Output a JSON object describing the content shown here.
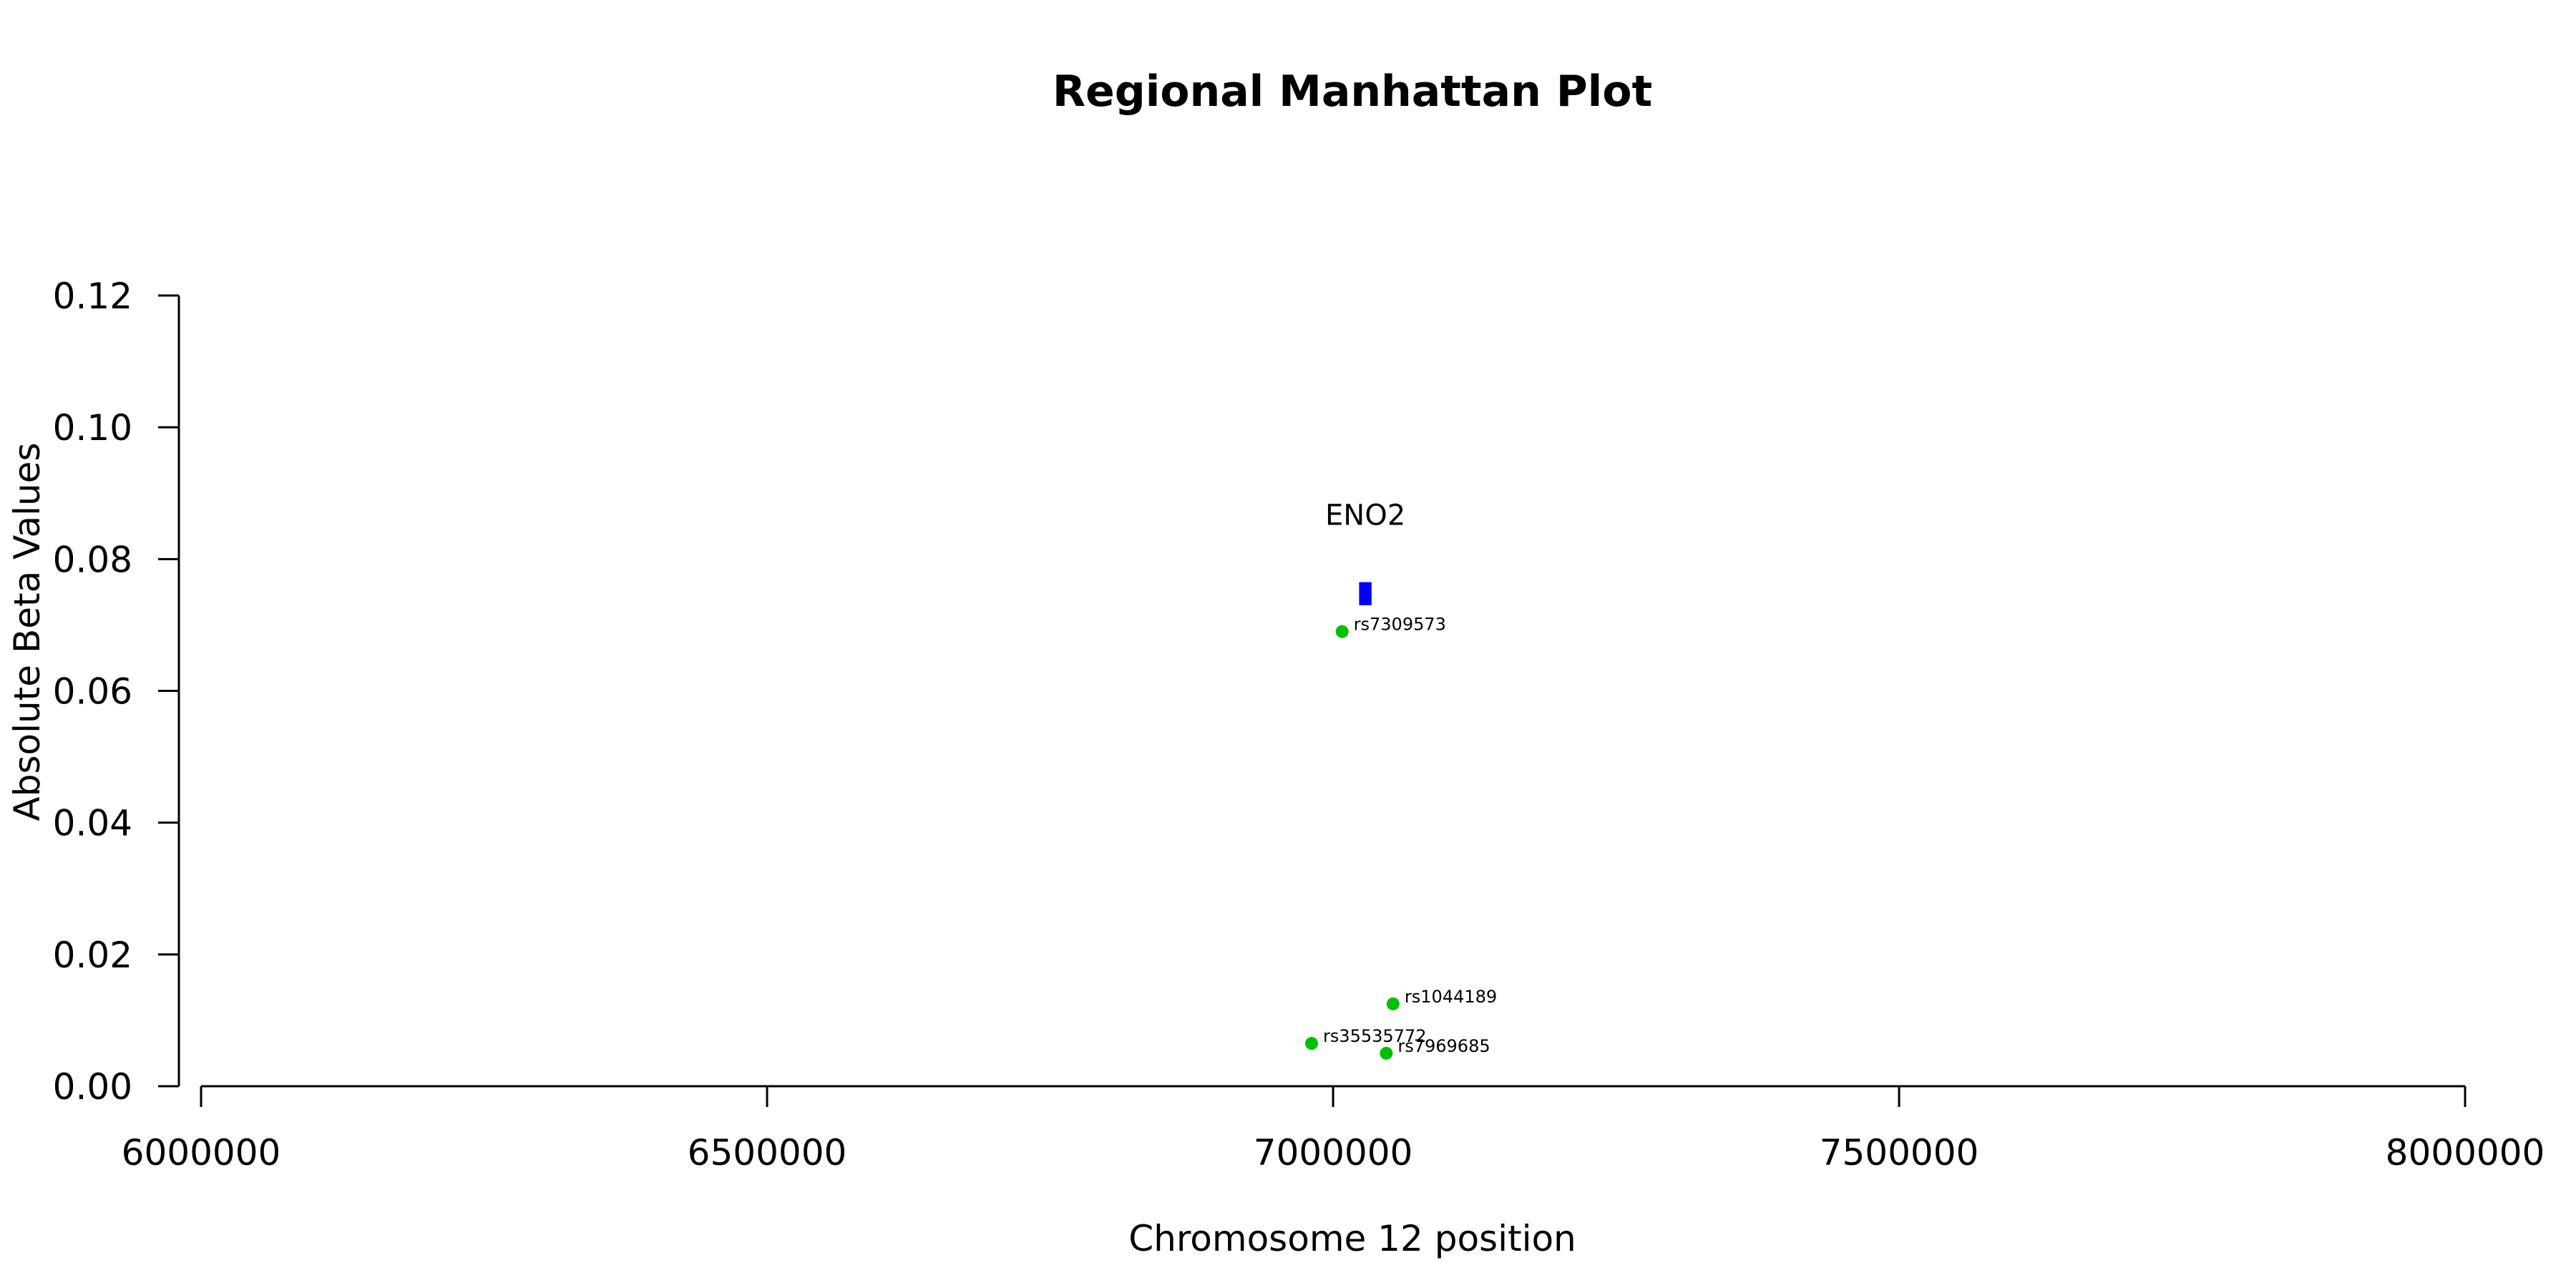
{
  "chart_data": {
    "type": "scatter",
    "title": "Regional Manhattan Plot",
    "xlabel": "Chromosome 12 position",
    "ylabel": "Absolute Beta Values",
    "xlim": [
      6000000,
      8000000
    ],
    "ylim": [
      0,
      0.12
    ],
    "x_ticks": [
      6000000,
      6500000,
      7000000,
      7500000,
      8000000
    ],
    "x_tick_labels": [
      "6000000",
      "6500000",
      "7000000",
      "7500000",
      "8000000"
    ],
    "y_ticks": [
      0,
      0.02,
      0.04,
      0.06,
      0.08,
      0.1,
      0.12
    ],
    "y_tick_labels": [
      "0.00",
      "0.02",
      "0.04",
      "0.06",
      "0.08",
      "0.10",
      "0.12"
    ],
    "grid": false,
    "points": [
      {
        "label": "rs7309573",
        "x": 7008000,
        "y": 0.069,
        "color": "#00c000"
      },
      {
        "label": "rs1044189",
        "x": 7053000,
        "y": 0.0125,
        "color": "#00c000"
      },
      {
        "label": "rs35535772",
        "x": 6981000,
        "y": 0.0065,
        "color": "#00c000"
      },
      {
        "label": "rs7969685",
        "x": 7047000,
        "y": 0.005,
        "color": "#00c000"
      }
    ],
    "genes": [
      {
        "name": "ENO2",
        "start": 7023000,
        "end": 7034000,
        "y_low": 0.073,
        "y_high": 0.0765,
        "color": "#0000ff"
      }
    ]
  }
}
